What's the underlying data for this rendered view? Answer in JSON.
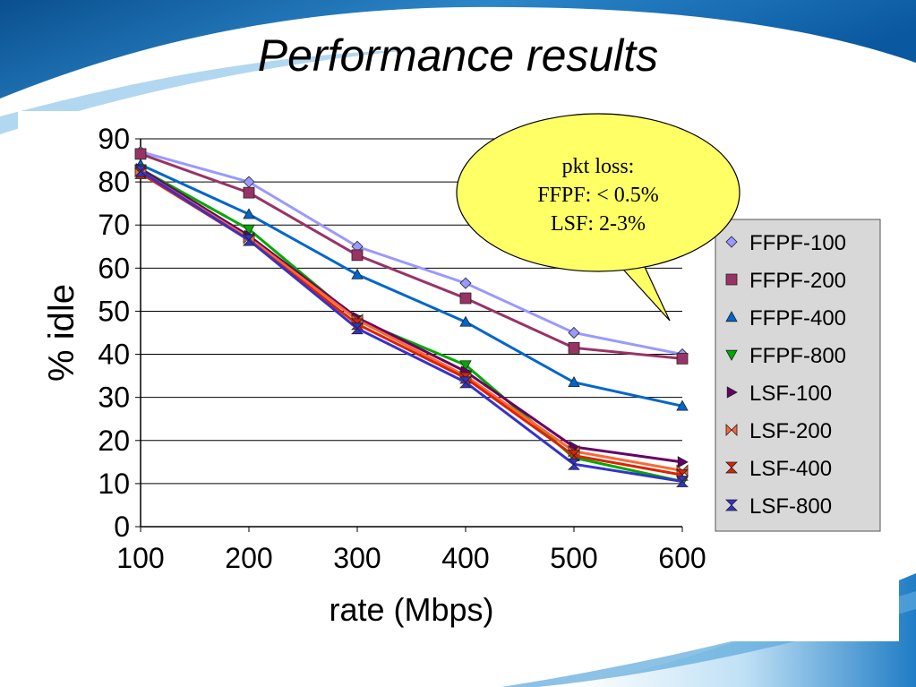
{
  "slide": {
    "title": "Performance results"
  },
  "callout": {
    "lines": [
      "pkt loss:",
      "FFPF: < 0.5%",
      "LSF: 2-3%"
    ],
    "fill": "#ffff66"
  },
  "chart_data": {
    "type": "line",
    "title": "",
    "xlabel": "rate (Mbps)",
    "ylabel": "% idle",
    "x": [
      100,
      200,
      300,
      400,
      500,
      600
    ],
    "xlim": [
      100,
      600
    ],
    "ylim": [
      0,
      90
    ],
    "yticks": [
      0,
      10,
      20,
      30,
      40,
      50,
      60,
      70,
      80,
      90
    ],
    "xticks": [
      100,
      200,
      300,
      400,
      500,
      600
    ],
    "grid": "horizontal",
    "legend_position": "right",
    "series": [
      {
        "name": "FFPF-100",
        "values": [
          87,
          80,
          65,
          56.5,
          45,
          40
        ],
        "color": "#9999ff",
        "marker": "diamond"
      },
      {
        "name": "FFPF-200",
        "values": [
          86.5,
          77.5,
          63,
          53,
          41.5,
          39
        ],
        "color": "#993366",
        "marker": "square"
      },
      {
        "name": "FFPF-400",
        "values": [
          84,
          72.5,
          58.5,
          47.5,
          33.5,
          28
        ],
        "color": "#0066cc",
        "marker": "triangle-up"
      },
      {
        "name": "FFPF-800",
        "values": [
          83,
          69,
          48,
          37.5,
          16,
          10.5
        ],
        "color": "#00aa00",
        "marker": "triangle-down"
      },
      {
        "name": "LSF-100",
        "values": [
          83,
          67.5,
          48.5,
          36,
          18.5,
          15
        ],
        "color": "#660066",
        "marker": "triangle-right"
      },
      {
        "name": "LSF-200",
        "values": [
          82.5,
          67,
          48,
          35,
          17.5,
          13
        ],
        "color": "#ff6633",
        "marker": "bowtie"
      },
      {
        "name": "LSF-400",
        "values": [
          82,
          66.5,
          47,
          34.5,
          16.5,
          12
        ],
        "color": "#dd2200",
        "marker": "hourglass"
      },
      {
        "name": "LSF-800",
        "values": [
          82.5,
          66.5,
          46,
          33.5,
          14.5,
          10.5
        ],
        "color": "#3333cc",
        "marker": "hourglass"
      }
    ]
  }
}
